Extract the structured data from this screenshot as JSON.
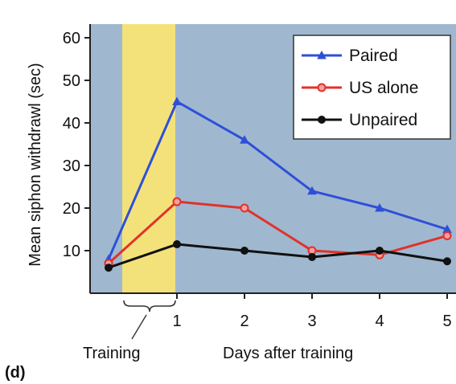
{
  "chart_data": {
    "type": "line",
    "ylabel": "Mean siphon withdrawl (sec)",
    "xlabel": "Days after training",
    "training_label": "Training",
    "panel_label": "(d)",
    "x_ticks": [
      "1",
      "2",
      "3",
      "4",
      "5"
    ],
    "y_ticks": [
      10,
      20,
      30,
      40,
      50,
      60
    ],
    "ylim": [
      0,
      62
    ],
    "grid": false,
    "legend_position": "top-right",
    "background_color": "#9fb8cf",
    "training_band_color": "#f3e27a",
    "series": [
      {
        "name": "Paired",
        "color": "#2f4fd8",
        "marker": "triangle",
        "x": [
          0,
          1,
          2,
          3,
          4,
          5
        ],
        "values": [
          8,
          45,
          36,
          24,
          20,
          15
        ]
      },
      {
        "name": "US alone",
        "color": "#e0322b",
        "marker": "circle-open",
        "x": [
          0,
          1,
          2,
          3,
          4,
          5
        ],
        "values": [
          7,
          21.5,
          20,
          10,
          9,
          13.5
        ]
      },
      {
        "name": "Unpaired",
        "color": "#111111",
        "marker": "circle-filled",
        "x": [
          0,
          1,
          2,
          3,
          4,
          5
        ],
        "values": [
          6,
          11.5,
          10,
          8.5,
          10,
          7.5
        ]
      }
    ]
  }
}
